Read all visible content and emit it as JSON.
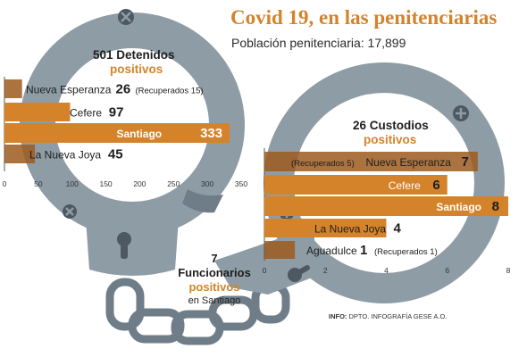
{
  "header": {
    "title": "Covid 19, en las penitenciarias",
    "subtitle": "Población penitenciaria: 17,899"
  },
  "detenidos": {
    "count_label": "501 Detenidos",
    "positivos_label": "positivos"
  },
  "custodios": {
    "count_label": "26 Custodios",
    "positivos_label": "positivos"
  },
  "funcionarios": {
    "count": "7",
    "label": "Funcionarios",
    "positivos_label": "positivos",
    "place": "en Santiago"
  },
  "source": {
    "prefix": "INFO:",
    "text": " DPTO. INFOGRAFÍA GESE A.O."
  },
  "colors": {
    "cuff": "#8e9ca6",
    "cuff_dark": "#6f7d88",
    "bar": "#d4832a",
    "bar_dark": "#9c5a1f",
    "screw": "#4d5862"
  },
  "chart_data": [
    {
      "type": "bar",
      "orientation": "horizontal",
      "categories": [
        "Nueva Esperanza",
        "Cefere",
        "Santiago",
        "La Nueva Joya"
      ],
      "values": [
        26,
        97,
        333,
        45
      ],
      "notes": [
        "(Recuperados 15)",
        "",
        "",
        ""
      ],
      "highlight": "Santiago",
      "xlim": [
        0,
        350
      ],
      "xticks": [
        0,
        50,
        100,
        150,
        200,
        250,
        300,
        350
      ]
    },
    {
      "type": "bar",
      "orientation": "horizontal",
      "categories": [
        "Nueva Esperanza",
        "Cefere",
        "Santiago",
        "La Nueva Joya",
        "Aguadulce"
      ],
      "values": [
        7,
        6,
        8,
        4,
        1
      ],
      "notes": [
        "(Recuperados 5)",
        "",
        "",
        "",
        "(Recuperados 1)"
      ],
      "highlight": "Santiago",
      "xlim": [
        0,
        8
      ],
      "xticks": [
        0,
        2,
        4,
        6,
        8
      ]
    }
  ]
}
